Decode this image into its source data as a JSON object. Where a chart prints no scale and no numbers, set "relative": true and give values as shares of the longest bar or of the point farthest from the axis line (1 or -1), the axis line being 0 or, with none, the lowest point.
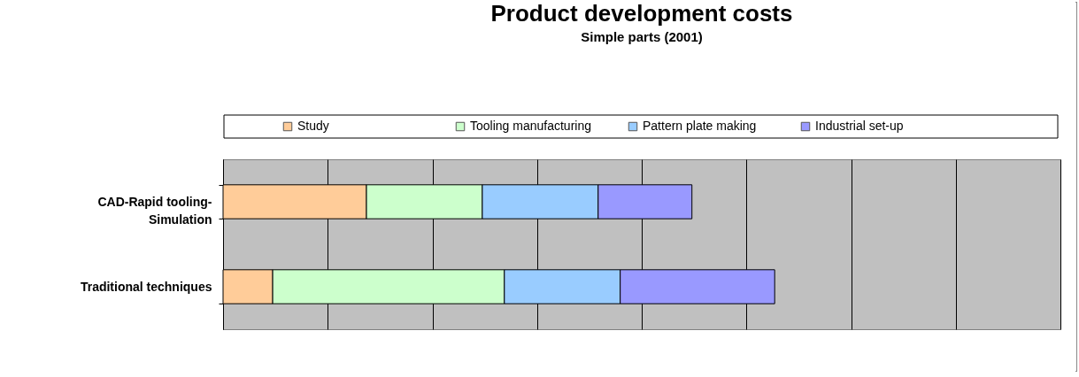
{
  "chart_data": {
    "type": "bar",
    "title": "Product development costs",
    "subtitle": "Simple parts (2001)",
    "orientation": "horizontal",
    "stacked": true,
    "relative": true,
    "grid": "x",
    "legend": "top",
    "categories": [
      "CAD-Rapid tooling-Simulation",
      "Traditional techniques"
    ],
    "series": [
      {
        "name": "Study",
        "color": "#ffcc99",
        "values": [
          0.26,
          0.09
        ]
      },
      {
        "name": "Tooling manufacturing",
        "color": "#ccffcc",
        "values": [
          0.21,
          0.42
        ]
      },
      {
        "name": "Pattern plate making",
        "color": "#99ccff",
        "values": [
          0.21,
          0.21
        ]
      },
      {
        "name": "Industrial set-up",
        "color": "#9999ff",
        "values": [
          0.17,
          0.28
        ]
      }
    ]
  }
}
